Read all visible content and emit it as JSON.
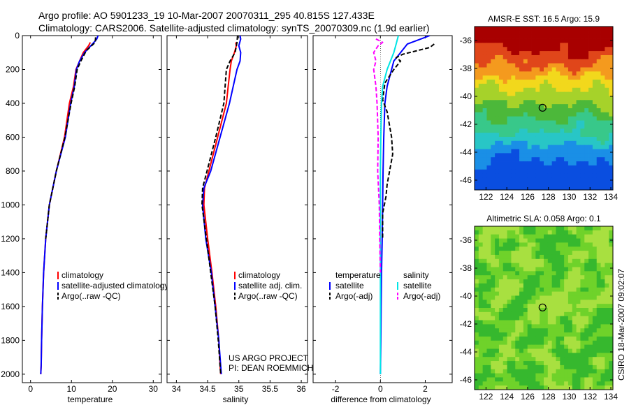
{
  "header": {
    "title_line1": "Argo profile: AO 5901233_19 10-Mar-2007 20070311_295 40.815S 127.433E",
    "title_line2": "Climatology: CARS2006. Satellite-adjusted climatology: synTS_20070309.nc (1.9d earlier)"
  },
  "project_credit": {
    "line1": "US ARGO PROJECT",
    "line2": "PI: DEAN ROEMMICH"
  },
  "side_credit": "CSIRO 18-Mar-2007 09:02:07",
  "chart_data": [
    {
      "type": "line",
      "id": "temperature-profile",
      "xlabel": "temperature",
      "ylabel": "",
      "xlim": [
        -2,
        32
      ],
      "ylim": [
        2050,
        0
      ],
      "xticks": [
        0,
        10,
        20,
        30
      ],
      "yticks": [
        0,
        200,
        400,
        600,
        800,
        1000,
        1200,
        1400,
        1600,
        1800,
        2000
      ],
      "grid": false,
      "legend_position": "lower-right",
      "series": [
        {
          "name": "climatology",
          "color": "#ff0000",
          "dash": "solid",
          "x": [
            14.6,
            14.2,
            12.9,
            12.0,
            11.1,
            10.5,
            9.5,
            8.3,
            6.3,
            4.6,
            3.7,
            3.2,
            2.9,
            2.7,
            2.6,
            2.5
          ],
          "y": [
            40,
            60,
            100,
            150,
            200,
            300,
            400,
            600,
            800,
            1000,
            1200,
            1400,
            1600,
            1800,
            1950,
            2000
          ]
        },
        {
          "name": "satellite-adjusted climatology",
          "color": "#0000ff",
          "dash": "solid",
          "x": [
            16.5,
            16.2,
            15.5,
            13.2,
            12.0,
            11.2,
            10.7,
            9.8,
            8.5,
            6.3,
            4.6,
            3.7,
            3.2,
            2.9,
            2.7,
            2.6,
            2.5
          ],
          "y": [
            0,
            20,
            40,
            100,
            150,
            200,
            300,
            400,
            600,
            800,
            1000,
            1200,
            1400,
            1600,
            1800,
            1950,
            2000
          ]
        },
        {
          "name": "Argo(..raw -QC)",
          "color": "#000000",
          "dash": "dashed",
          "x": [
            15.9,
            15.8,
            13.6,
            12.3,
            11.4,
            10.8,
            9.9,
            8.4,
            6.3,
            4.6,
            3.7
          ],
          "y": [
            10,
            40,
            90,
            150,
            200,
            300,
            400,
            600,
            800,
            1000,
            1200
          ]
        }
      ]
    },
    {
      "type": "line",
      "id": "salinity-profile",
      "xlabel": "salinity",
      "ylabel": "",
      "xlim": [
        33.85,
        36.1
      ],
      "ylim": [
        2050,
        0
      ],
      "xticks": [
        34,
        34.5,
        35,
        35.5,
        36
      ],
      "grid": false,
      "legend_position": "lower-right",
      "series": [
        {
          "name": "climatology",
          "color": "#ff0000",
          "dash": "solid",
          "x": [
            34.95,
            34.96,
            34.93,
            34.88,
            34.86,
            34.83,
            34.8,
            34.66,
            34.52,
            34.45,
            34.44,
            34.5,
            34.57,
            34.63,
            34.68,
            34.7,
            34.71
          ],
          "y": [
            40,
            60,
            100,
            150,
            200,
            300,
            400,
            600,
            800,
            900,
            1000,
            1200,
            1400,
            1600,
            1800,
            1950,
            2000
          ]
        },
        {
          "name": "satellite adj. clim.",
          "color": "#0000ff",
          "dash": "solid",
          "x": [
            35.02,
            35.03,
            35.0,
            35.03,
            35.02,
            34.97,
            34.91,
            34.85,
            34.7,
            34.55,
            34.44,
            34.42,
            34.47,
            34.56,
            34.62,
            34.68,
            34.71,
            34.72
          ],
          "y": [
            0,
            20,
            60,
            100,
            150,
            200,
            300,
            400,
            600,
            800,
            900,
            1000,
            1200,
            1400,
            1600,
            1800,
            1950,
            2000
          ]
        },
        {
          "name": "Argo(..raw -QC)",
          "color": "#000000",
          "dash": "dashed",
          "x": [
            34.98,
            34.97,
            34.94,
            34.86,
            34.8,
            34.78,
            34.76,
            34.63,
            34.49,
            34.42,
            34.41,
            34.48,
            34.55,
            34.62,
            34.67,
            34.7,
            34.71
          ],
          "y": [
            0,
            40,
            100,
            150,
            200,
            300,
            400,
            600,
            800,
            900,
            1000,
            1200,
            1400,
            1600,
            1800,
            1950,
            2000
          ]
        }
      ]
    },
    {
      "type": "line",
      "id": "difference-profile",
      "xlabel": "difference from climatology",
      "ylabel": "",
      "xlim": [
        -3,
        3.2
      ],
      "ylim": [
        2050,
        0
      ],
      "xticks": [
        -2,
        0,
        2
      ],
      "grid": false,
      "legend_position": "lower-right",
      "legend_groups": [
        "temperature",
        "salinity"
      ],
      "series": [
        {
          "name": "satellite",
          "group": "temperature",
          "color": "#0000ff",
          "dash": "solid",
          "x": [
            2.2,
            2.0,
            1.2,
            0.9,
            0.6,
            0.5,
            0.3,
            0.2,
            0.15,
            0.12,
            0.1,
            0.08,
            0.05,
            0.03,
            0.02,
            0.0
          ],
          "y": [
            0,
            10,
            50,
            100,
            150,
            200,
            300,
            400,
            600,
            800,
            1000,
            1200,
            1400,
            1600,
            1800,
            2000
          ]
        },
        {
          "name": "Argo(-adj)",
          "group": "temperature",
          "color": "#000000",
          "dash": "dashed",
          "x": [
            2.4,
            2.2,
            1.0,
            0.7,
            0.9,
            0.6,
            0.2,
            0.1,
            0.3,
            0.5,
            0.55,
            0.3,
            0.25,
            0.1,
            0.1,
            0.1
          ],
          "y": [
            50,
            70,
            110,
            130,
            150,
            200,
            280,
            380,
            450,
            600,
            700,
            880,
            950,
            1050,
            1100,
            1200
          ]
        },
        {
          "name": "satellite",
          "group": "salinity",
          "color": "#00e5e5",
          "dash": "solid",
          "x": [
            0.8,
            0.7,
            0.6,
            0.3,
            0.1,
            0.05,
            0.02,
            0.0,
            0.0,
            0.0,
            0.0,
            0.0
          ],
          "y": [
            0,
            50,
            100,
            200,
            300,
            400,
            600,
            800,
            1000,
            1400,
            1800,
            2000
          ]
        },
        {
          "name": "Argo(-adj)",
          "group": "salinity",
          "color": "#ff00ff",
          "dash": "dashed",
          "x": [
            -0.2,
            0.1,
            -0.1,
            -0.3,
            -0.2,
            -0.3,
            -0.2,
            -0.15,
            -0.1,
            -0.12,
            -0.05,
            -0.03,
            0.0
          ],
          "y": [
            20,
            40,
            60,
            100,
            150,
            200,
            300,
            400,
            600,
            800,
            1000,
            1200,
            1400
          ]
        }
      ]
    },
    {
      "type": "heatmap",
      "id": "amsr-sst-map",
      "title": "AMSR-E SST: 16.5 Argo: 15.9",
      "xlim": [
        120.9,
        134.2
      ],
      "ylim": [
        -46.7,
        -35.0
      ],
      "xticks": [
        122,
        124,
        126,
        128,
        130,
        132,
        134
      ],
      "yticks": [
        -36,
        -38,
        -40,
        -42,
        -44,
        -46
      ],
      "marker": {
        "lon": 127.433,
        "lat": -40.815
      },
      "colormap": [
        "#0a4ee0",
        "#1a8fe6",
        "#28c6c6",
        "#38c88a",
        "#4cb83a",
        "#a6d22a",
        "#f2d81c",
        "#f49a1e",
        "#e0461a",
        "#a80000"
      ],
      "value_range": [
        13,
        19
      ],
      "profile_note": "SST rises from about 13 in the south to about 19 in the north"
    },
    {
      "type": "heatmap",
      "id": "altimetric-sla-map",
      "title": "Altimetric SLA: 0.058 Argo: 0.1",
      "xlim": [
        120.9,
        134.2
      ],
      "ylim": [
        -46.7,
        -35.0
      ],
      "xticks": [
        122,
        124,
        126,
        128,
        130,
        132,
        134
      ],
      "yticks": [
        -36,
        -38,
        -40,
        -42,
        -44,
        -46
      ],
      "marker": {
        "lon": 127.433,
        "lat": -40.815
      },
      "colormap": [
        "#36b82e",
        "#6fd22a",
        "#a8e040"
      ],
      "value_range": [
        0,
        0.2
      ]
    }
  ]
}
